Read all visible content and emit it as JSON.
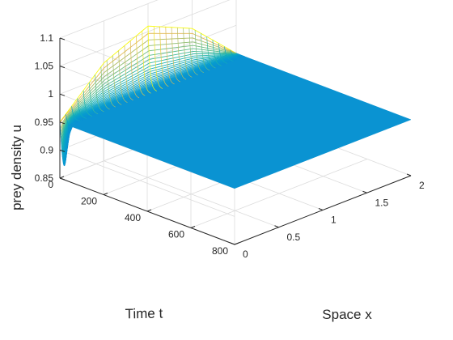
{
  "chart_data": {
    "type": "surface",
    "title": "",
    "xlabel": "Space x",
    "ylabel": "Time t",
    "zlabel": "prey density u",
    "x_ticks": [
      "0",
      "0.5",
      "1",
      "1.5",
      "2"
    ],
    "t_ticks": [
      "0",
      "200",
      "400",
      "600",
      "800"
    ],
    "z_ticks": [
      "0.85",
      "0.9",
      "0.95",
      "1",
      "1.05",
      "1.1"
    ],
    "xlim": [
      0,
      2
    ],
    "tlim": [
      0,
      800
    ],
    "zlim": [
      0.85,
      1.1
    ],
    "grid": true,
    "colormap": "parula",
    "steady_state": 0.95,
    "initial_profile": {
      "description_values": [
        {
          "x": 0.0,
          "u": 0.95
        },
        {
          "x": 0.5,
          "u": 1.025
        },
        {
          "x": 1.0,
          "u": 1.06
        },
        {
          "x": 1.5,
          "u": 1.025
        },
        {
          "x": 2.0,
          "u": 0.95
        }
      ]
    },
    "edge_min_u": 0.875,
    "transient_end_t": 40
  }
}
